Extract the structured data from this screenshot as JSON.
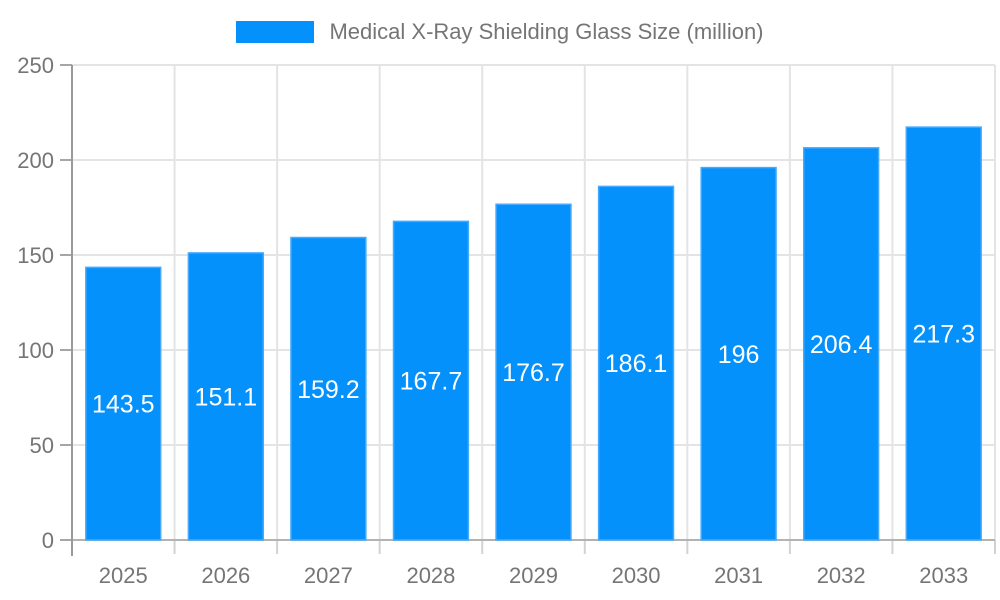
{
  "legend": {
    "label": "Medical X-Ray Shielding Glass Size (million)"
  },
  "chart_data": {
    "type": "bar",
    "title": "Medical X-Ray Shielding Glass Size (million)",
    "series_name": "Medical X-Ray Shielding Glass Size (million)",
    "categories": [
      "2025",
      "2026",
      "2027",
      "2028",
      "2029",
      "2030",
      "2031",
      "2032",
      "2033"
    ],
    "values": [
      143.5,
      151.1,
      159.2,
      167.7,
      176.7,
      186.1,
      196,
      206.4,
      217.3
    ],
    "xlabel": "",
    "ylabel": "",
    "ylim": [
      0,
      250
    ],
    "yticks": [
      0,
      50,
      100,
      150,
      200,
      250
    ],
    "grid": true,
    "legend_position": "top",
    "bar_labels_visible": true
  },
  "colors": {
    "bar": "#0591fb",
    "bar_stroke": "#45a9fd",
    "bar_label": "#ffffff",
    "axis_line_y": "#9a9a9a",
    "axis_line_x": "#b3b3b3",
    "grid_line": "#e4e4e4",
    "tick_y": "#a6a6a6",
    "tick_x": "#d2d2d2",
    "tick_label": "#757575",
    "legend_text": "#757575",
    "background": "#ffffff"
  }
}
